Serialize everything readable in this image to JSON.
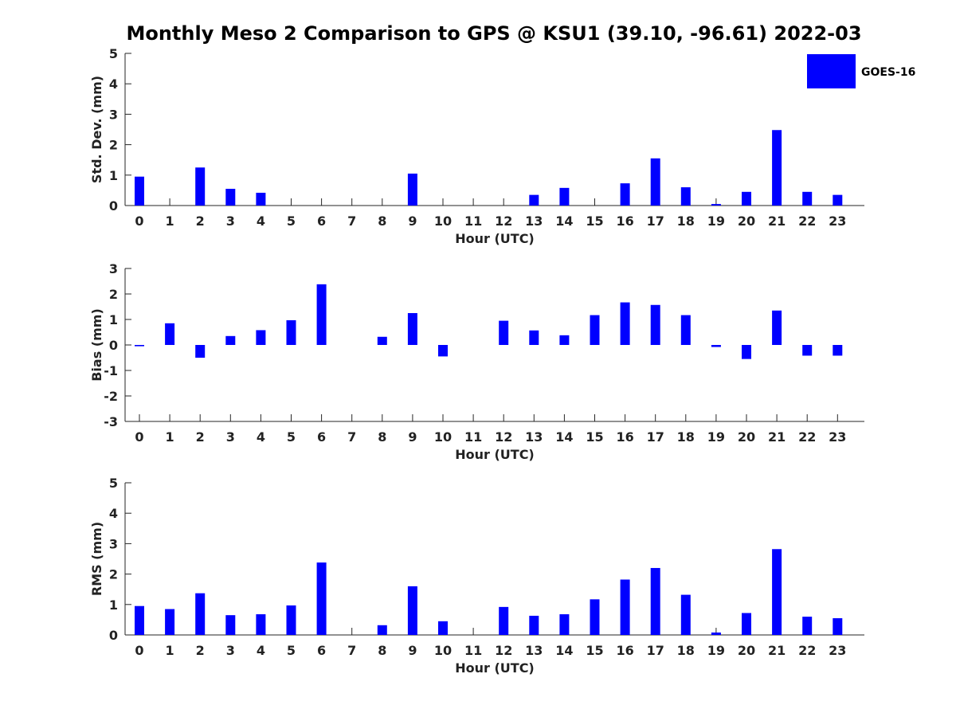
{
  "title": "Monthly Meso 2 Comparison to GPS @ KSU1 (39.10, -96.61) 2022-03",
  "legend": {
    "label": "GOES-16",
    "color": "#0000ff"
  },
  "chart_data": [
    {
      "type": "bar",
      "ylabel": "Std. Dev. (mm)",
      "xlabel": "Hour (UTC)",
      "ylim": [
        0,
        5
      ],
      "yticks": [
        0,
        1,
        2,
        3,
        4,
        5
      ],
      "categories": [
        "0",
        "1",
        "2",
        "3",
        "4",
        "5",
        "6",
        "7",
        "8",
        "9",
        "10",
        "11",
        "12",
        "13",
        "14",
        "15",
        "16",
        "17",
        "18",
        "19",
        "20",
        "21",
        "22",
        "23"
      ],
      "series": [
        {
          "name": "GOES-16",
          "color": "#0000ff",
          "values": [
            0.95,
            null,
            1.25,
            0.55,
            0.42,
            null,
            null,
            null,
            null,
            1.05,
            null,
            null,
            null,
            0.35,
            0.58,
            null,
            0.73,
            1.55,
            0.6,
            0.05,
            0.45,
            2.48,
            0.45,
            0.35
          ]
        }
      ]
    },
    {
      "type": "bar",
      "ylabel": "Bias (mm)",
      "xlabel": "Hour (UTC)",
      "ylim": [
        -3,
        3
      ],
      "yticks": [
        -3,
        -2,
        -1,
        0,
        1,
        2,
        3
      ],
      "categories": [
        "0",
        "1",
        "2",
        "3",
        "4",
        "5",
        "6",
        "7",
        "8",
        "9",
        "10",
        "11",
        "12",
        "13",
        "14",
        "15",
        "16",
        "17",
        "18",
        "19",
        "20",
        "21",
        "22",
        "23"
      ],
      "series": [
        {
          "name": "GOES-16",
          "color": "#0000ff",
          "values": [
            -0.05,
            0.85,
            -0.5,
            0.35,
            0.58,
            0.97,
            2.38,
            null,
            0.32,
            1.25,
            -0.45,
            null,
            0.95,
            0.57,
            0.38,
            1.17,
            1.67,
            1.57,
            1.17,
            -0.08,
            -0.55,
            1.35,
            -0.42,
            -0.42
          ]
        }
      ]
    },
    {
      "type": "bar",
      "ylabel": "RMS (mm)",
      "xlabel": "Hour (UTC)",
      "ylim": [
        0,
        5
      ],
      "yticks": [
        0,
        1,
        2,
        3,
        4,
        5
      ],
      "categories": [
        "0",
        "1",
        "2",
        "3",
        "4",
        "5",
        "6",
        "7",
        "8",
        "9",
        "10",
        "11",
        "12",
        "13",
        "14",
        "15",
        "16",
        "17",
        "18",
        "19",
        "20",
        "21",
        "22",
        "23"
      ],
      "series": [
        {
          "name": "GOES-16",
          "color": "#0000ff",
          "values": [
            0.95,
            0.85,
            1.37,
            0.65,
            0.68,
            0.97,
            2.38,
            null,
            0.32,
            1.6,
            0.45,
            null,
            0.92,
            0.63,
            0.68,
            1.17,
            1.82,
            2.2,
            1.32,
            0.08,
            0.72,
            2.82,
            0.6,
            0.55
          ]
        }
      ]
    }
  ]
}
